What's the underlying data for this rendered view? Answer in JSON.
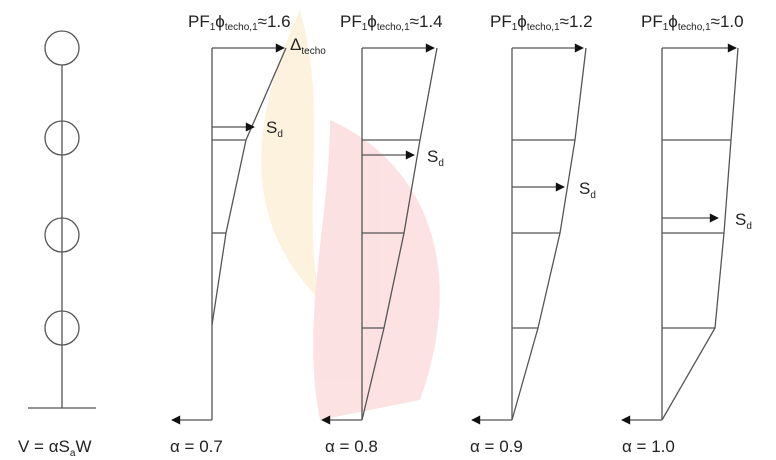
{
  "stick": {
    "label": {
      "main": "V = αS",
      "sub": "a",
      "end": "W"
    }
  },
  "panels": [
    {
      "title": {
        "prefix": "PF",
        "sub1": "1",
        "symbol": "ϕ",
        "sub2": "techo,1",
        "approx": "≈1.6"
      },
      "alpha": "α = 0.7",
      "sd": {
        "main": "S",
        "sub": "d"
      },
      "delta": {
        "main": "Δ",
        "sub": "techo"
      }
    },
    {
      "title": {
        "prefix": "PF",
        "sub1": "1",
        "symbol": "ϕ",
        "sub2": "techo,1",
        "approx": "≈1.4"
      },
      "alpha": "α = 0.8",
      "sd": {
        "main": "S",
        "sub": "d"
      }
    },
    {
      "title": {
        "prefix": "PF",
        "sub1": "1",
        "symbol": "ϕ",
        "sub2": "techo,1",
        "approx": "≈1.2"
      },
      "alpha": "α = 0.9",
      "sd": {
        "main": "S",
        "sub": "d"
      }
    },
    {
      "title": {
        "prefix": "PF",
        "sub1": "1",
        "symbol": "ϕ",
        "sub2": "techo,1",
        "approx": "≈1.0"
      },
      "alpha": "α = 1.0",
      "sd": {
        "main": "S",
        "sub": "d"
      }
    }
  ]
}
